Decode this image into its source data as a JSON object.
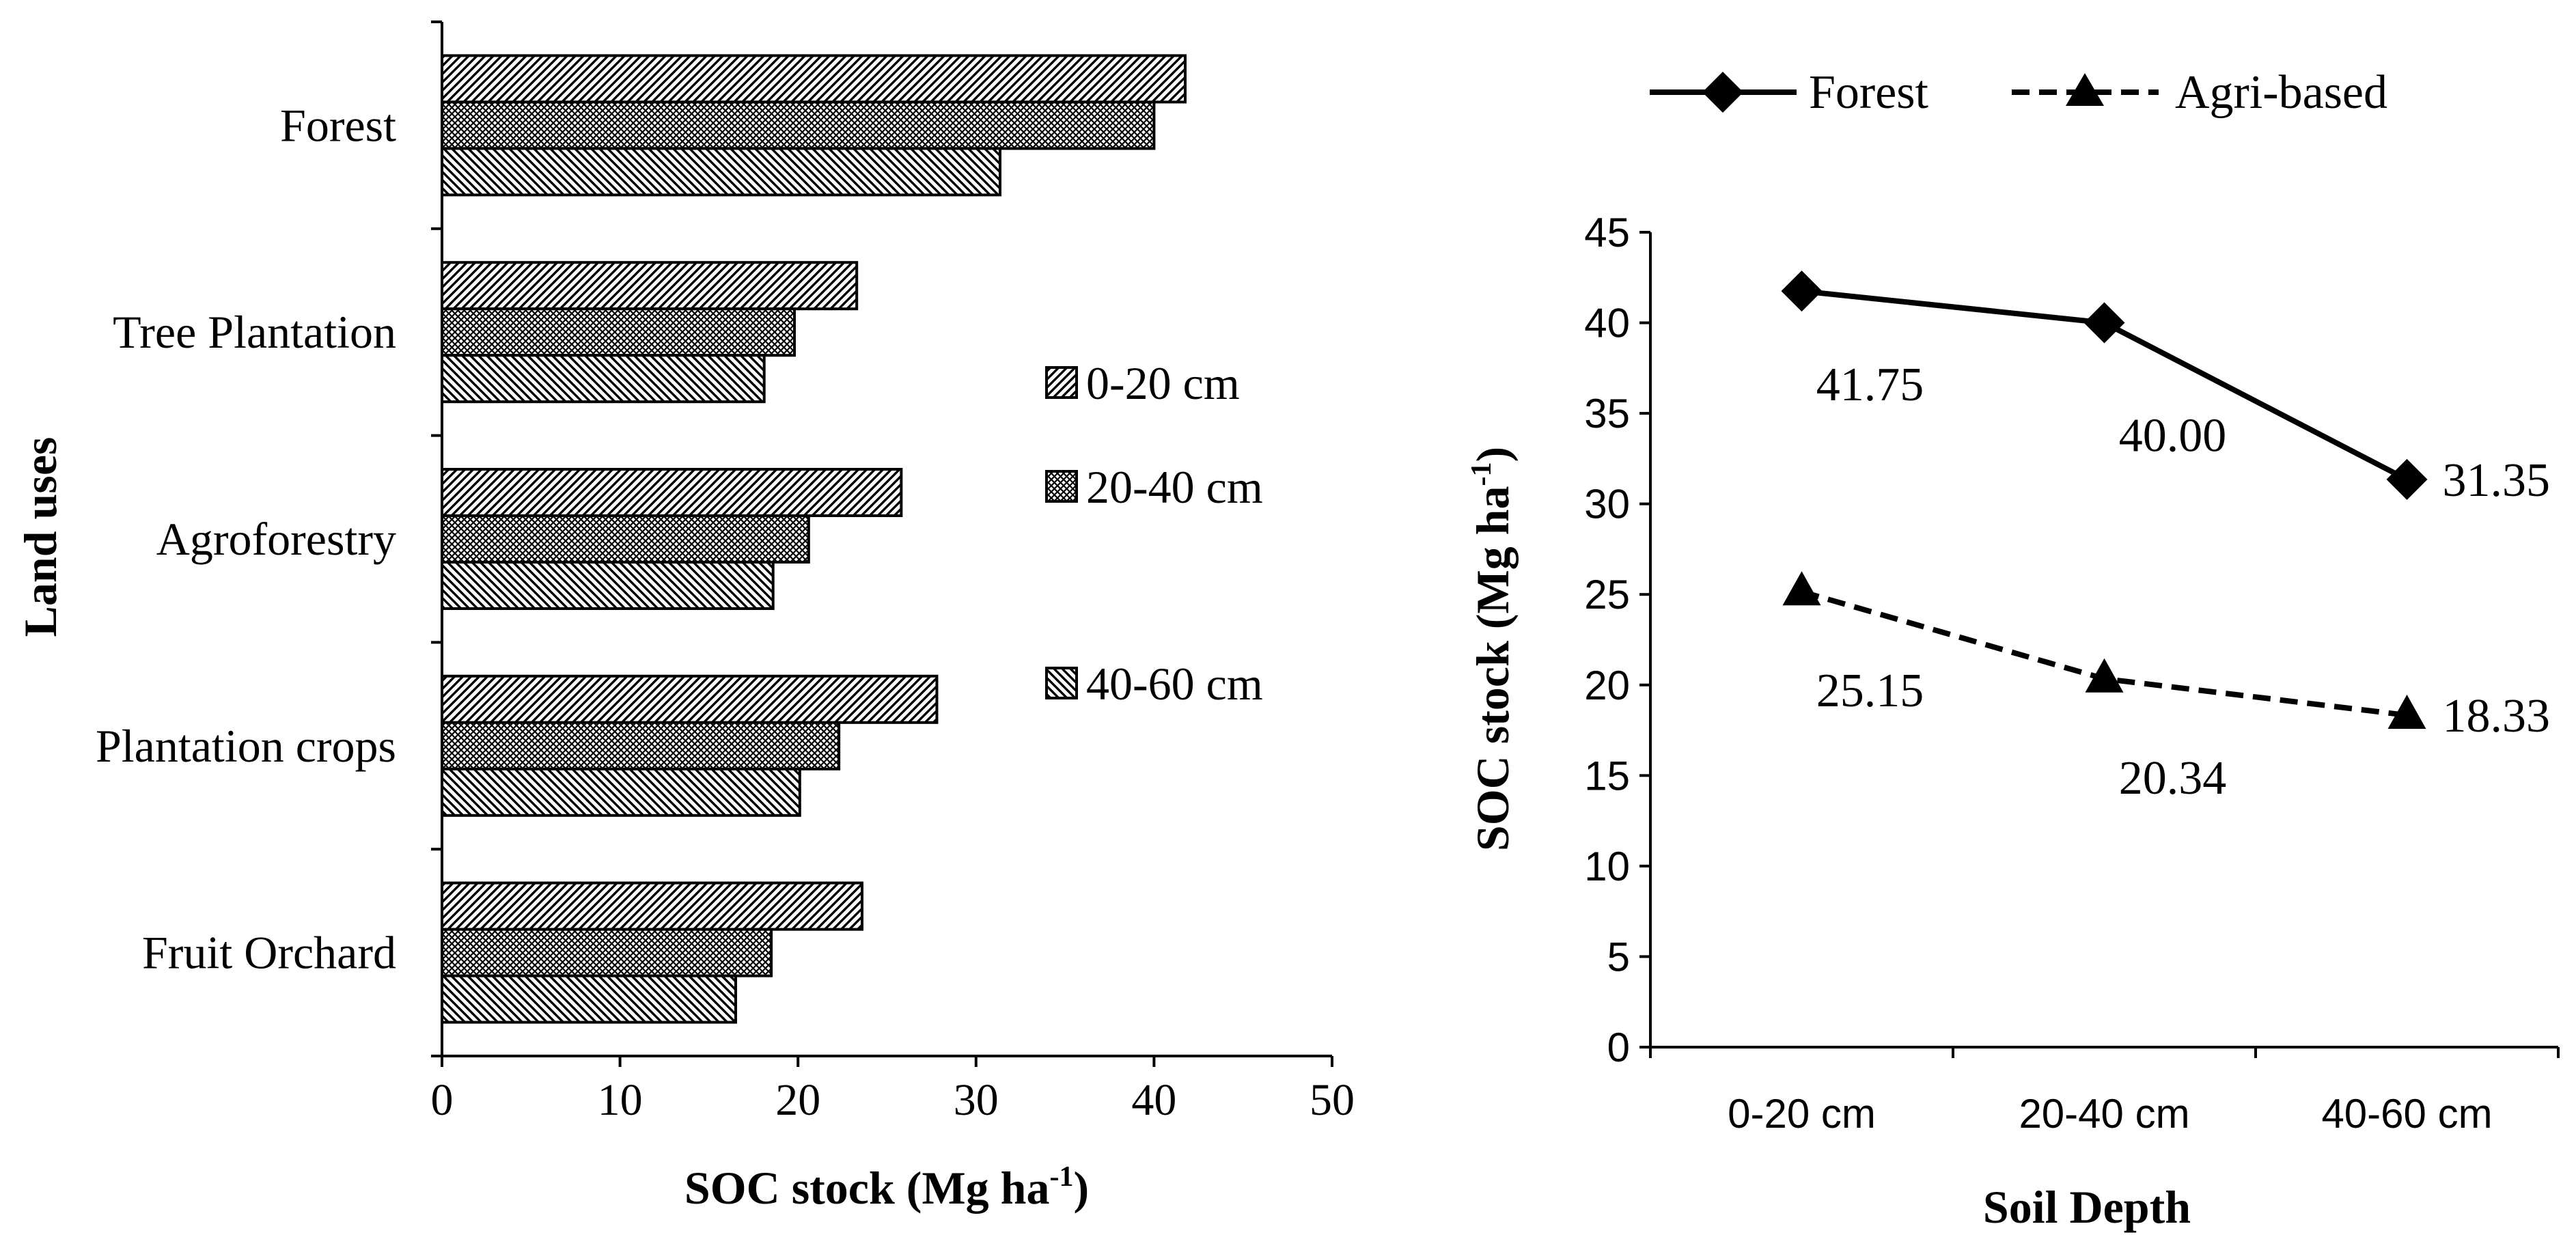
{
  "colors": {
    "ink": "#000000",
    "background": "#ffffff"
  },
  "chart_data": [
    {
      "type": "bar",
      "orientation": "horizontal",
      "title": "",
      "xlabel": "SOC stock (Mg ha",
      "xlabel_sup": "-1",
      "xlabel_close": ")",
      "ylabel": "Land uses",
      "xlim": [
        0,
        50
      ],
      "xticks": [
        "0",
        "10",
        "20",
        "30",
        "40",
        "50"
      ],
      "categories": [
        "Forest",
        "Tree Plantation",
        "Agroforestry",
        "Plantation crops",
        "Fruit Orchard"
      ],
      "series": [
        {
          "name": "0-20 cm",
          "pattern": "diag-right",
          "values": [
            41.75,
            23.3,
            25.8,
            27.8,
            23.6
          ]
        },
        {
          "name": "20-40 cm",
          "pattern": "crosshatch",
          "values": [
            40.0,
            19.8,
            20.6,
            22.3,
            18.5
          ]
        },
        {
          "name": "40-60 cm",
          "pattern": "diag-left",
          "values": [
            31.35,
            18.1,
            18.6,
            20.1,
            16.5
          ]
        }
      ],
      "legend_position": "right-middle"
    },
    {
      "type": "line",
      "title": "",
      "xlabel": "Soil Depth",
      "ylabel": "SOC stock (Mg ha",
      "ylabel_sup": "-1",
      "ylabel_close": ")",
      "ylim": [
        0,
        45
      ],
      "yticks": [
        "0",
        "5",
        "10",
        "15",
        "20",
        "25",
        "30",
        "35",
        "40",
        "45"
      ],
      "categories": [
        "0-20 cm",
        "20-40 cm",
        "40-60 cm"
      ],
      "series": [
        {
          "name": "Forest",
          "marker": "diamond",
          "line": "solid",
          "values": [
            41.75,
            40.0,
            31.35
          ],
          "labels": [
            "41.75",
            "40.00",
            "31.35"
          ]
        },
        {
          "name": "Agri-based",
          "marker": "triangle",
          "line": "dashed",
          "values": [
            25.15,
            20.34,
            18.33
          ],
          "labels": [
            "25.15",
            "20.34",
            "18.33"
          ]
        }
      ],
      "legend_position": "top"
    }
  ]
}
